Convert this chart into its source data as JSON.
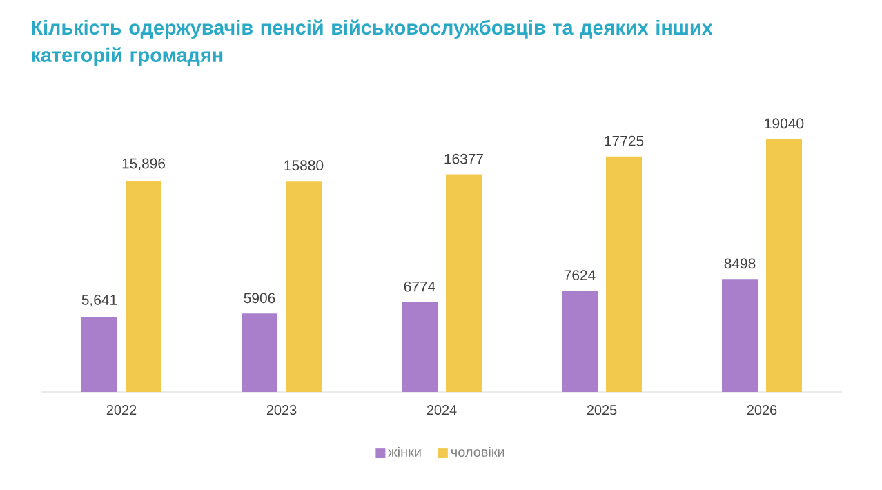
{
  "chart_data": {
    "type": "bar",
    "title": "Кількість одержувачів пенсій військовослужбовців та деяких інших категорій громадян",
    "categories": [
      "2022",
      "2023",
      "2024",
      "2025",
      "2026"
    ],
    "series": [
      {
        "name": "жінки",
        "color": "#a97fcc",
        "values": [
          5641,
          5906,
          6774,
          7624,
          8498
        ],
        "value_labels": [
          "5,641",
          "5906",
          "6774",
          "7624",
          "8498"
        ]
      },
      {
        "name": "чоловіки",
        "color": "#f2c94c",
        "values": [
          15896,
          15880,
          16377,
          17725,
          19040
        ],
        "value_labels": [
          "15,896",
          "15880",
          "16377",
          "17725",
          "19040"
        ]
      }
    ],
    "legend": "bottom",
    "grid": false
  }
}
